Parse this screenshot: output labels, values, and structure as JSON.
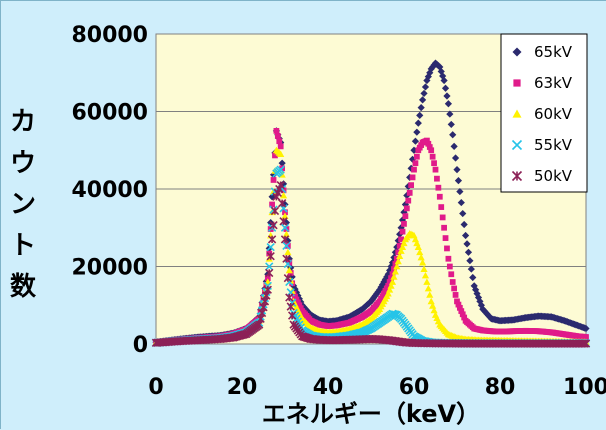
{
  "chart_data": {
    "type": "scatter",
    "title": "",
    "xlabel": "エネルギー（keV）",
    "ylabel": "カウント数",
    "xlim": [
      0,
      100
    ],
    "ylim": [
      0,
      80000
    ],
    "x_ticks": [
      "0",
      "20",
      "40",
      "60",
      "80",
      "100"
    ],
    "y_ticks": [
      "0",
      "20000",
      "40000",
      "60000",
      "80000"
    ],
    "grid": "horizontal",
    "legend_position": "top-right",
    "series": [
      {
        "name": "65kV",
        "color": "#2b2a6e",
        "marker": "diamond",
        "x": [
          0,
          5,
          10,
          15,
          18,
          21,
          24,
          26,
          27,
          28,
          29,
          30,
          31,
          32,
          34,
          36,
          38,
          40,
          42,
          45,
          48,
          50,
          52,
          54,
          55,
          56,
          57,
          58,
          59,
          60,
          61,
          62,
          63,
          64,
          65,
          66,
          67,
          68,
          69,
          70,
          72,
          74,
          76,
          78,
          80,
          83,
          86,
          89,
          92,
          95,
          98,
          100
        ],
        "y": [
          500,
          1200,
          1800,
          2200,
          2800,
          4000,
          7000,
          18000,
          38000,
          55000,
          52000,
          36000,
          22000,
          15000,
          10000,
          7500,
          6200,
          5800,
          6000,
          7000,
          9000,
          11000,
          14000,
          18000,
          21000,
          25000,
          30000,
          36000,
          43000,
          50000,
          57000,
          63000,
          68000,
          71000,
          72500,
          71500,
          68000,
          62000,
          54000,
          45000,
          28000,
          15000,
          9000,
          6500,
          6000,
          6200,
          6800,
          7200,
          7000,
          6000,
          4800,
          4000
        ]
      },
      {
        "name": "63kV",
        "color": "#e01b8a",
        "marker": "square",
        "x": [
          0,
          5,
          10,
          15,
          18,
          21,
          24,
          26,
          27,
          28,
          29,
          30,
          31,
          32,
          34,
          36,
          38,
          40,
          42,
          45,
          48,
          50,
          52,
          54,
          55,
          56,
          57,
          58,
          59,
          60,
          61,
          62,
          63,
          64,
          65,
          66,
          67,
          68,
          69,
          70,
          72,
          74,
          76,
          78,
          80,
          83,
          86,
          89,
          92,
          95,
          98,
          100
        ],
        "y": [
          500,
          1100,
          1600,
          2000,
          2600,
          3800,
          6500,
          17000,
          36000,
          55000,
          51000,
          34000,
          21000,
          13000,
          8500,
          6000,
          5000,
          4600,
          4800,
          5500,
          7000,
          8500,
          11000,
          15000,
          18000,
          22000,
          27000,
          33000,
          39000,
          45000,
          50000,
          52000,
          52500,
          50000,
          45000,
          38000,
          30000,
          22000,
          16000,
          11000,
          6000,
          4000,
          3500,
          3300,
          3200,
          3300,
          3400,
          3300,
          3000,
          2500,
          2000,
          1800
        ]
      },
      {
        "name": "60kV",
        "color": "#fff200",
        "marker": "triangle",
        "x": [
          0,
          5,
          10,
          15,
          18,
          21,
          24,
          26,
          27,
          28,
          29,
          30,
          31,
          32,
          34,
          36,
          38,
          40,
          42,
          45,
          48,
          50,
          52,
          54,
          55,
          56,
          57,
          58,
          59,
          60,
          61,
          62,
          63,
          64,
          65,
          66,
          68,
          70,
          72,
          75,
          80,
          85,
          90,
          95,
          100
        ],
        "y": [
          400,
          900,
          1300,
          1700,
          2300,
          3400,
          6000,
          16000,
          34000,
          50000,
          49000,
          33000,
          19000,
          11000,
          6500,
          4200,
          3300,
          3000,
          3100,
          3800,
          5000,
          6500,
          9000,
          13000,
          16000,
          20000,
          24000,
          27000,
          28500,
          28000,
          25000,
          21000,
          16000,
          11000,
          7500,
          5000,
          2500,
          1600,
          1200,
          1000,
          900,
          800,
          700,
          600,
          500
        ]
      },
      {
        "name": "55kV",
        "color": "#26c4e8",
        "marker": "x",
        "x": [
          0,
          5,
          10,
          15,
          18,
          21,
          24,
          26,
          27,
          28,
          29,
          30,
          31,
          32,
          34,
          36,
          38,
          40,
          42,
          45,
          48,
          50,
          52,
          54,
          55,
          56,
          57,
          58,
          59,
          60,
          62,
          64,
          66,
          70,
          75,
          80,
          85,
          90,
          95,
          100
        ],
        "y": [
          300,
          800,
          1200,
          1500,
          2000,
          3000,
          5500,
          15000,
          30000,
          44000,
          45000,
          30000,
          16000,
          8000,
          3500,
          2200,
          1800,
          1700,
          1800,
          2200,
          3000,
          4000,
          5500,
          7000,
          7800,
          7500,
          6500,
          5000,
          3500,
          2000,
          800,
          400,
          300,
          250,
          200,
          200,
          200,
          200,
          200,
          200
        ]
      },
      {
        "name": "50kV",
        "color": "#8c2157",
        "marker": "asterisk",
        "x": [
          0,
          5,
          10,
          15,
          18,
          21,
          24,
          26,
          27,
          28,
          29,
          30,
          31,
          32,
          34,
          36,
          38,
          40,
          42,
          45,
          48,
          50,
          52,
          54,
          56,
          58,
          60,
          65,
          70,
          75,
          80,
          85,
          90,
          95,
          100
        ],
        "y": [
          300,
          700,
          1000,
          1300,
          1700,
          2600,
          5000,
          14000,
          27000,
          38000,
          41000,
          27000,
          12000,
          5000,
          2000,
          1300,
          1100,
          1000,
          1000,
          1100,
          1200,
          1300,
          1200,
          1000,
          700,
          400,
          250,
          150,
          120,
          100,
          100,
          100,
          100,
          100,
          100
        ]
      }
    ]
  }
}
